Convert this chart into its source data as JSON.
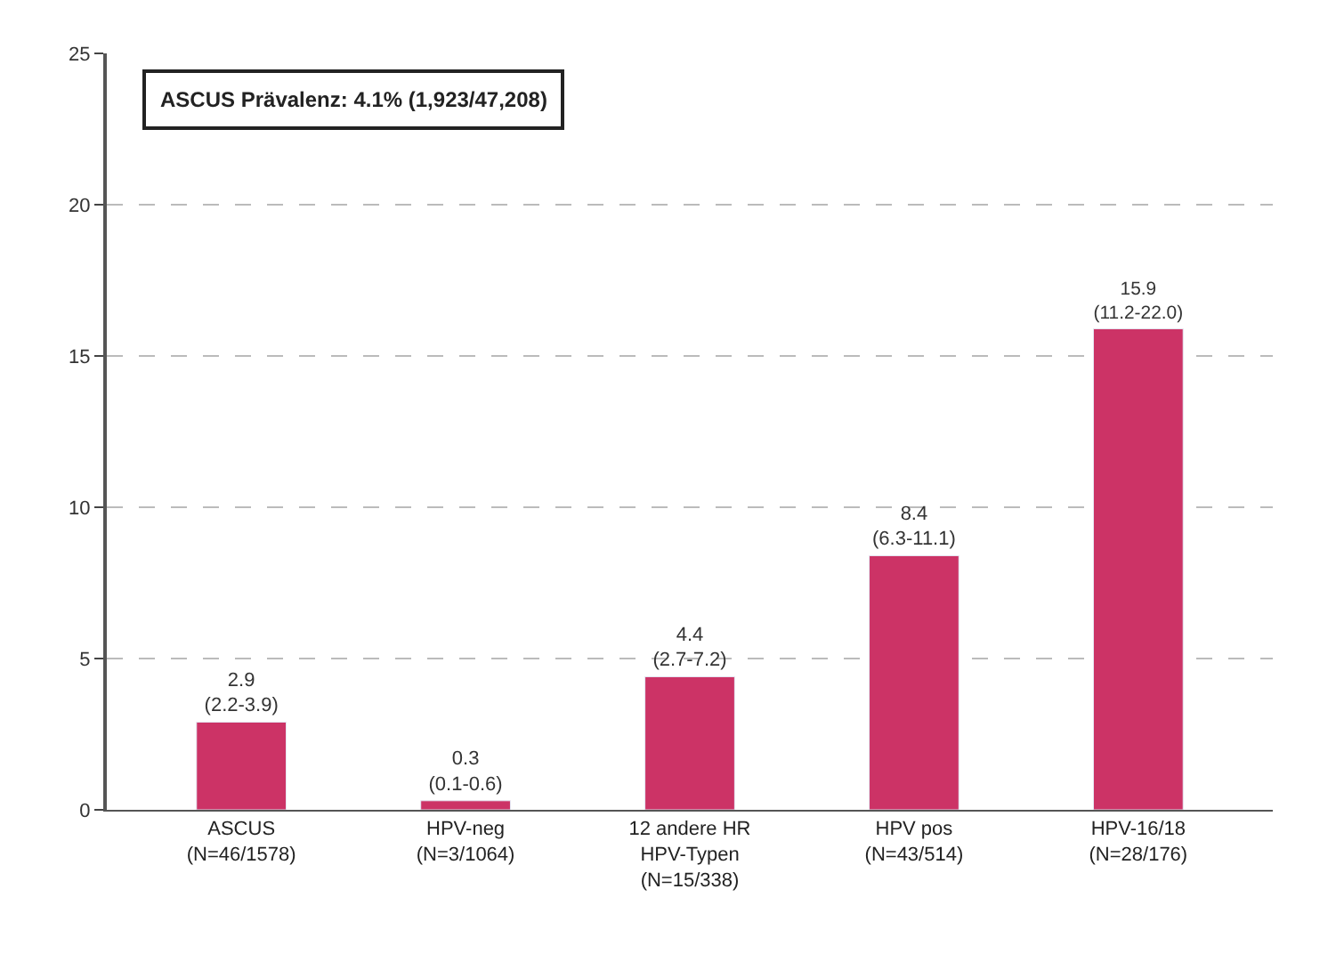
{
  "chart_data": {
    "type": "bar",
    "categories": [
      "ASCUS\n(N=46/1578)",
      "HPV-neg\n(N=3/1064)",
      "12 andere HR\nHPV-Typen\n(N=15/338)",
      "HPV pos\n(N=43/514)",
      "HPV-16/18\n(N=28/176)"
    ],
    "values": [
      2.9,
      0.3,
      4.4,
      8.4,
      15.9
    ],
    "value_labels": [
      "2.9\n(2.2-3.9)",
      "0.3\n(0.1-0.6)",
      "4.4\n(2.7-7.2)",
      "8.4\n(6.3-11.1)",
      "15.9\n(11.2-22.0)"
    ],
    "color": "#cc3366",
    "ylim": [
      0,
      25
    ],
    "yticks": [
      0,
      5,
      10,
      15,
      20,
      25
    ],
    "grid": "y",
    "annotations": [
      "ASCUS Prävalenz: 4.1% (1,923/47,208)"
    ]
  }
}
